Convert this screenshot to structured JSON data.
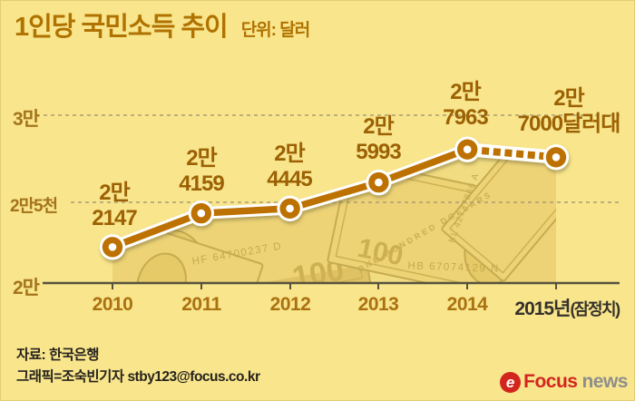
{
  "title": {
    "prefix": "1인당 ",
    "emphasis": "국민소득",
    "suffix": " 추이",
    "unit": "단위: 달러"
  },
  "y_axis": {
    "top": "3만",
    "mid": "2만5천",
    "base": "2만"
  },
  "x_axis": {
    "years": [
      "2010",
      "2011",
      "2012",
      "2013",
      "2014"
    ],
    "last_year": "2015년",
    "last_note": "(잠정치)"
  },
  "labels": [
    {
      "line1": "2만",
      "line2": "2147"
    },
    {
      "line1": "2만",
      "line2": "4159"
    },
    {
      "line1": "2만",
      "line2": "4445"
    },
    {
      "line1": "2만",
      "line2": "5993"
    },
    {
      "line1": "2만",
      "line2": "7963"
    },
    {
      "line1": "2만",
      "line2": "7000달러대"
    }
  ],
  "footer": {
    "source": "자료: 한국은행",
    "credit": "그래픽=조숙빈기자 stby123@focus.co.kr"
  },
  "logo": {
    "symbol": "e",
    "brand": "Focus",
    "brand2": "news"
  },
  "money_texture": {
    "serials": [
      "HF 64700237 D",
      "HB 67074129 N",
      "KL 42737866 A"
    ],
    "denomination": "100",
    "band_text": "ONE HUNDRED DOLLARS"
  },
  "colors": {
    "background": "#f8e58c",
    "accent_line": "#bd7103",
    "line_casing": "#ffffff",
    "title": "#b07200",
    "data_label": "#9c6104",
    "axis_label": "#a3741c",
    "year_label": "#ab7110",
    "year_final": "#35312b",
    "gridline": "#a89d74",
    "baseline": "#57523e",
    "footer_text": "#26231d",
    "logo_red": "#d2251e",
    "logo_gray": "#8e8e8e"
  },
  "chart_data": {
    "type": "line",
    "title": "1인당 국민소득 추이",
    "unit": "달러",
    "categories": [
      "2010",
      "2011",
      "2012",
      "2013",
      "2014",
      "2015년(잠정치)"
    ],
    "values": [
      22147,
      24159,
      24445,
      25993,
      27963,
      27500
    ],
    "value_labels": [
      "2만 2147",
      "2만 4159",
      "2만 4445",
      "2만 5993",
      "2만 7963",
      "2만 7000달러대"
    ],
    "provisional_last_point": true,
    "dashed_segment": "2014→2015 (provisional, plotted ≈27,500 for '2만7000달러대')",
    "y_ticks": [
      {
        "label": "2만",
        "value": 20000
      },
      {
        "label": "2만5천",
        "value": 25000
      },
      {
        "label": "3만",
        "value": 30000
      }
    ],
    "ylim": [
      20000,
      31000
    ],
    "grid": "horizontal dashed",
    "legend": "none",
    "area_fill": "dollar-bill photo texture clipped under the line",
    "source": "한국은행"
  }
}
